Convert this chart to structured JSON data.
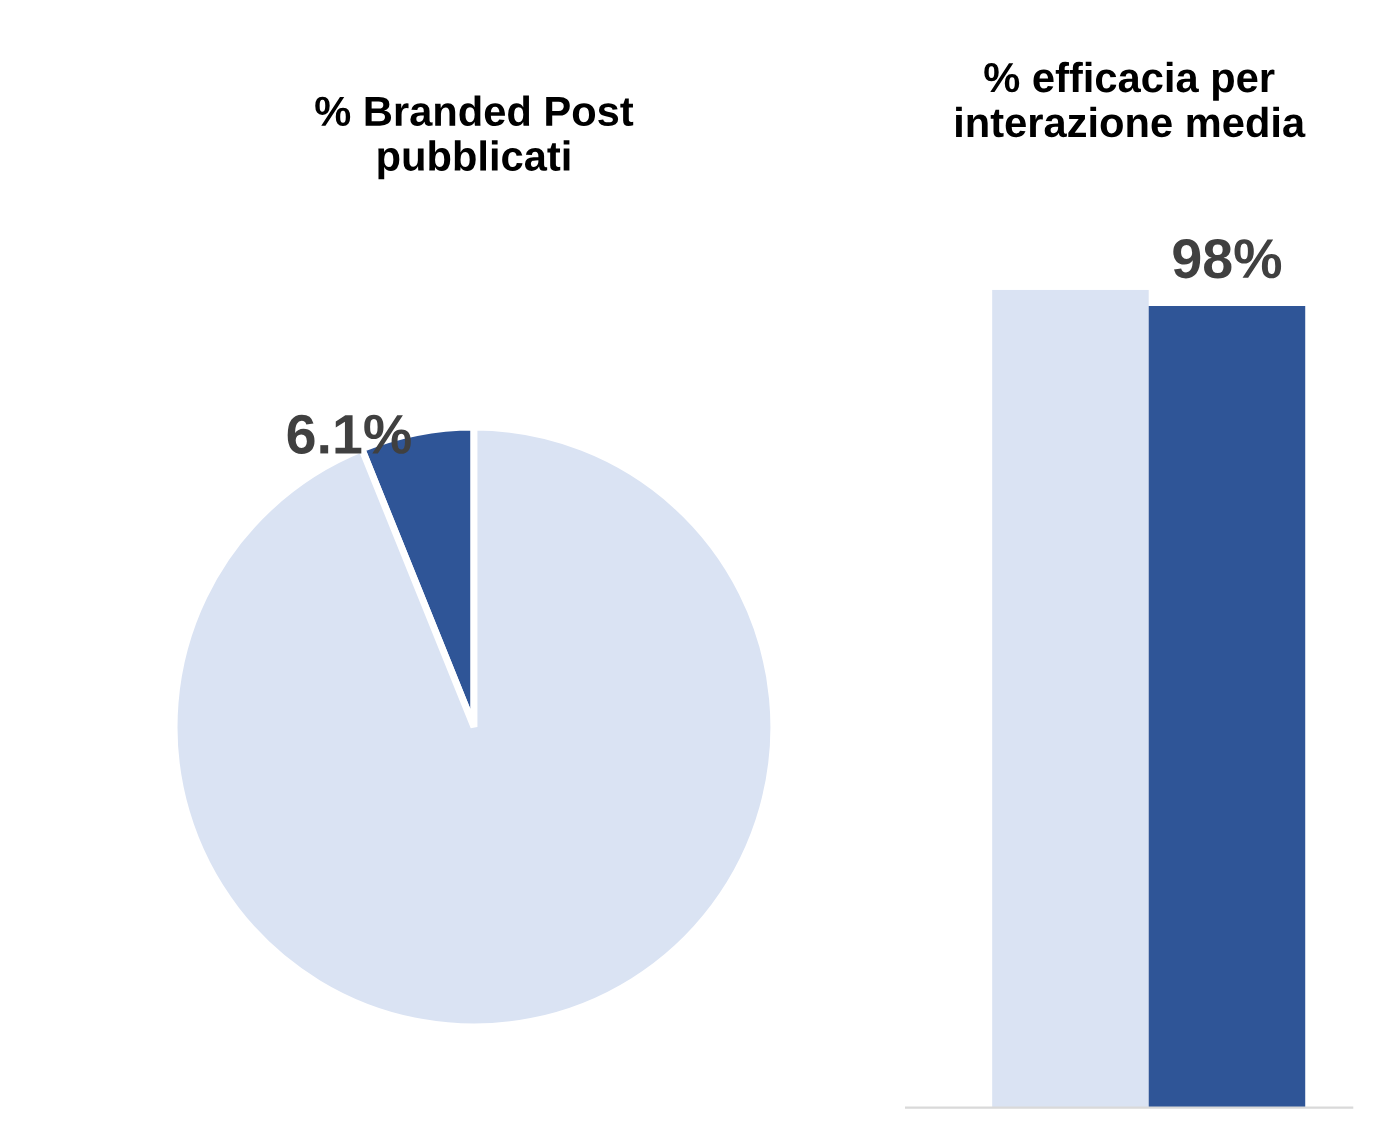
{
  "chart_data": [
    {
      "type": "pie",
      "title": "% Branded Post\npubblicati",
      "categories": [
        null,
        null
      ],
      "values": [
        93.9,
        6.1
      ],
      "colors": [
        "#dae3f3",
        "#2f5597"
      ],
      "value_labels": [
        null,
        "6.1%"
      ]
    },
    {
      "type": "bar",
      "title": "% efficacia per\ninterazione media",
      "categories": [
        null,
        null
      ],
      "values": [
        100,
        98
      ],
      "colors": [
        "#dae3f3",
        "#2f5597"
      ],
      "ylim": [
        0,
        100
      ],
      "tick_labels": false,
      "value_labels": [
        null,
        "98%"
      ]
    }
  ]
}
